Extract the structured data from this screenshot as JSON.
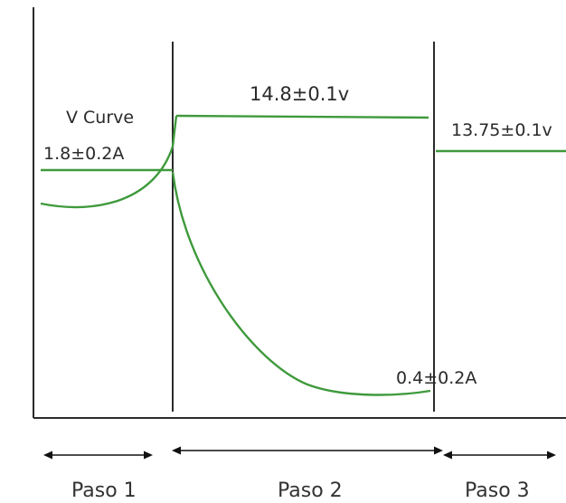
{
  "labels": {
    "v_curve": "V Curve",
    "current_step1": "1.8±0.2A",
    "voltage_step2": "14.8±0.1v",
    "voltage_step3": "13.75±0.1v",
    "current_step2_end": "0.4±0.2A"
  },
  "steps": [
    {
      "label": "Paso 1"
    },
    {
      "label": "Paso 2"
    },
    {
      "label": "Paso 3"
    }
  ],
  "colors": {
    "curve": "#3f9a3c",
    "axis": "#2b2b2b",
    "text": "#2a2a2a"
  }
}
